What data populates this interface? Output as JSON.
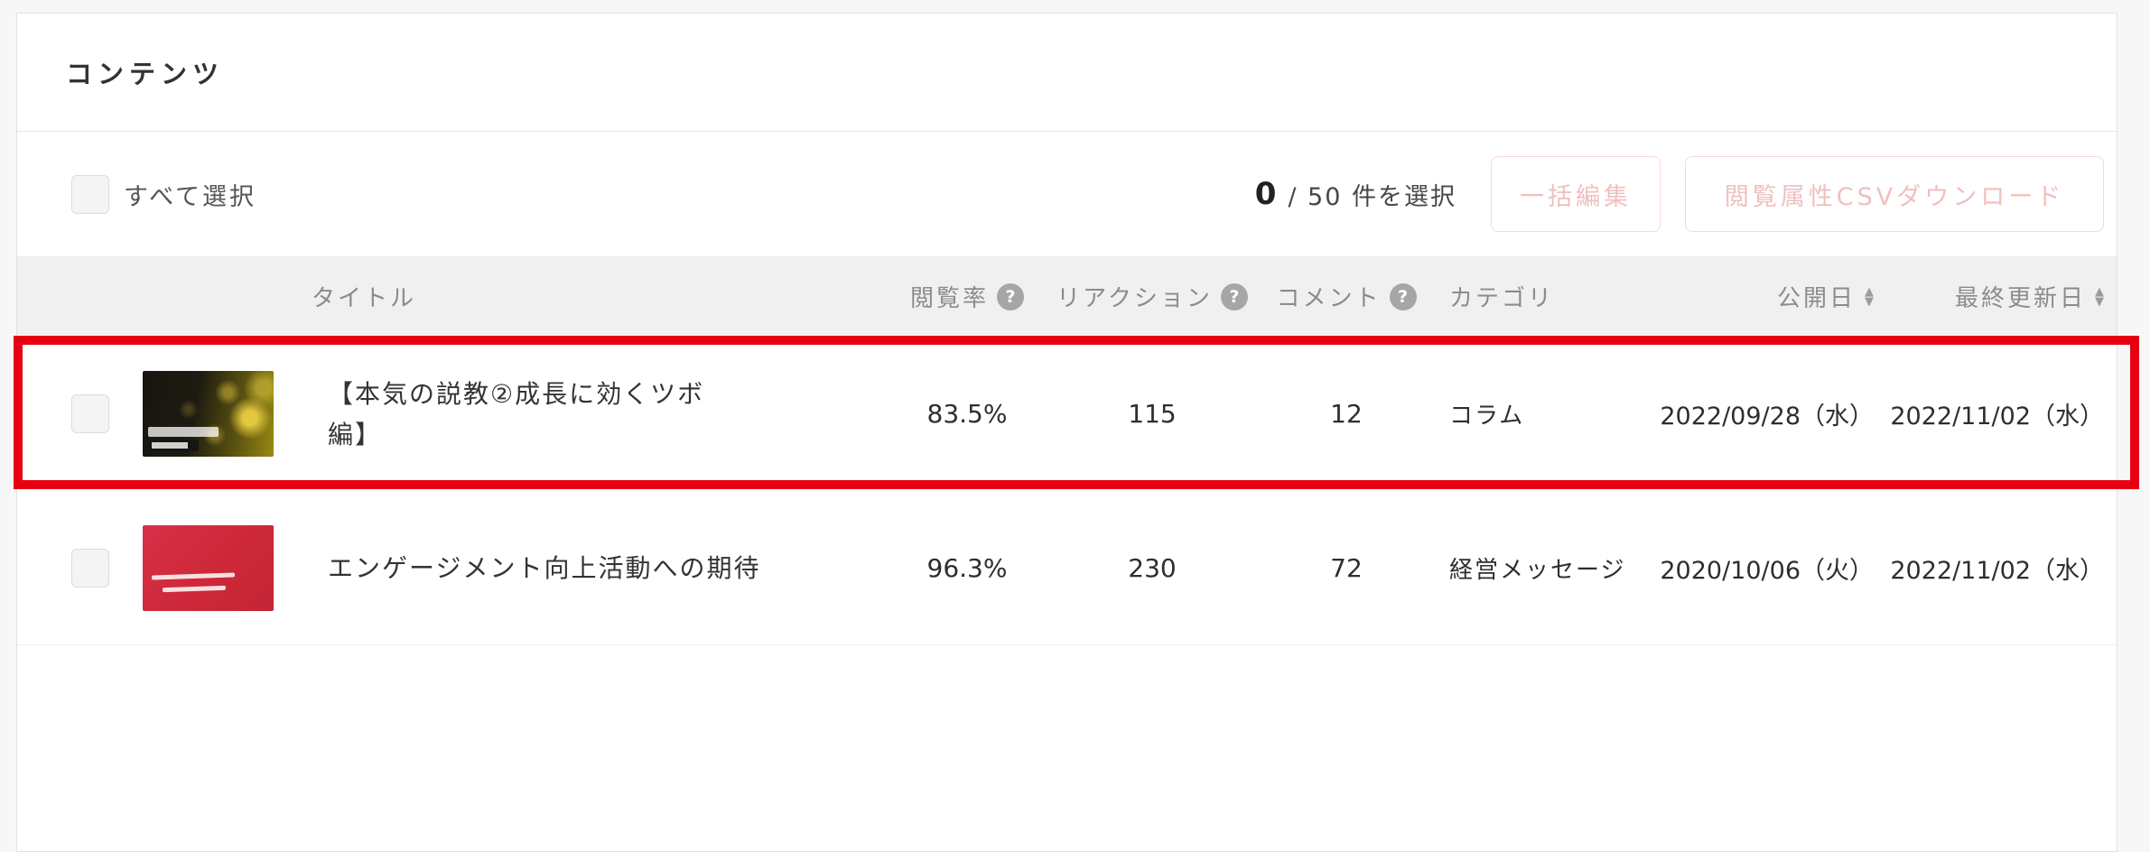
{
  "panel": {
    "title": "コンテンツ",
    "selection": {
      "select_all_label": "すべて選択",
      "selected_count": "0",
      "selected_total_label": "/ 50 件を選択",
      "bulk_edit_label": "一括編集",
      "csv_download_label": "閲覧属性CSVダウンロード"
    },
    "table": {
      "columns": [
        {
          "label": "タイトル"
        },
        {
          "label": "閲覧率",
          "help": true
        },
        {
          "label": "リアクション",
          "help": true
        },
        {
          "label": "コメント",
          "help": true
        },
        {
          "label": "カテゴリ"
        },
        {
          "label": "公開日",
          "sortable": true
        },
        {
          "label": "最終更新日",
          "sortable": true
        }
      ],
      "rows": [
        {
          "title": "【本気の説教②成長に効くツボ\n編】",
          "view_rate": "83.5%",
          "reactions": "115",
          "comments": "12",
          "category": "コラム",
          "published": "2022/09/28（水）",
          "updated": "2022/11/02（水）",
          "thumbnail": "dark-gold-bokeh-video-thumbnail",
          "highlighted": true
        },
        {
          "title": "エンゲージメント向上活動への期待",
          "view_rate": "96.3%",
          "reactions": "230",
          "comments": "72",
          "category": "経営メッセージ",
          "published": "2020/10/06（火）",
          "updated": "2022/11/02（水）",
          "thumbnail": "red-handwritten-message-video-thumbnail",
          "highlighted": false
        }
      ]
    }
  },
  "icons": {
    "help_glyph": "?",
    "sort_asc_glyph": "▲",
    "sort_desc_glyph": "▼"
  },
  "annotation": {
    "type": "highlight-box",
    "color": "#e60012"
  },
  "colors": {
    "accent_red": "#e60012",
    "disabled_button_pink": "#f0bfbf",
    "header_gray": "#f0f0f1"
  }
}
